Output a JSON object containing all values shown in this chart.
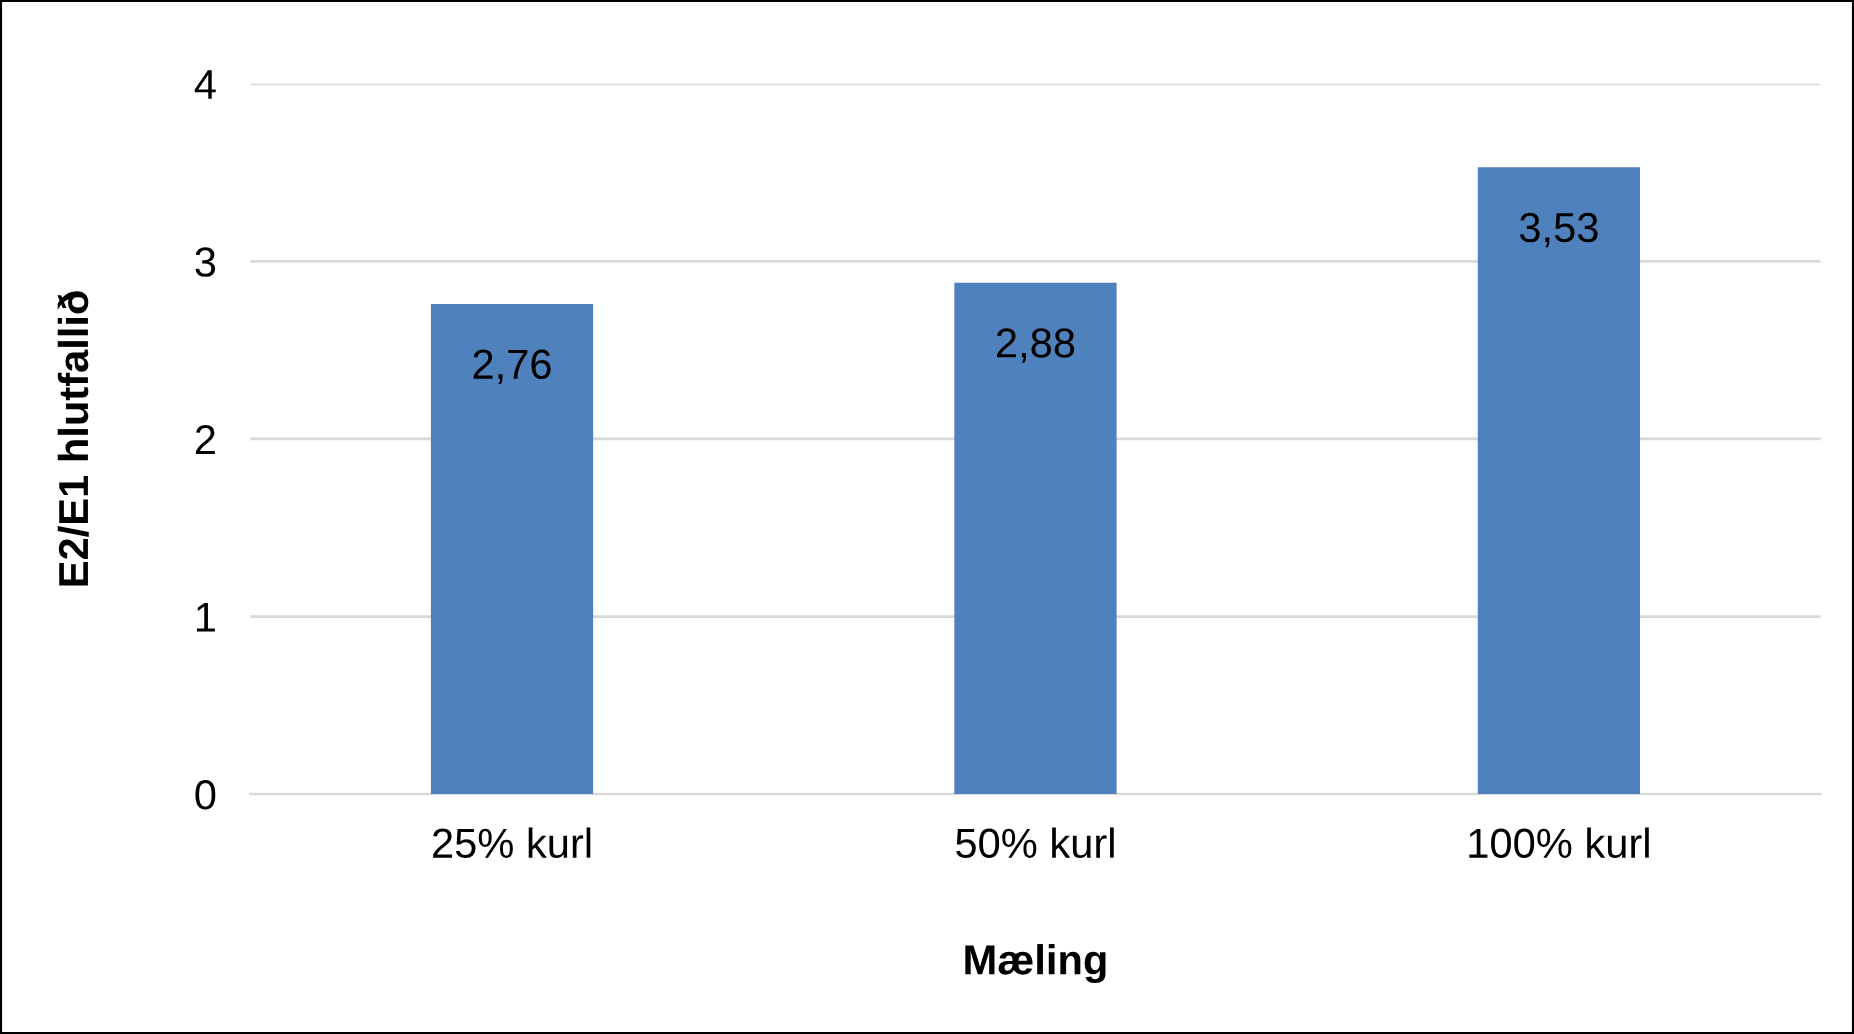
{
  "chart_data": {
    "type": "bar",
    "xlabel": "Mæling",
    "ylabel": "E2/E1 hlutfallið",
    "categories": [
      "25% kurl",
      "50% kurl",
      "100% kurl"
    ],
    "values": [
      2.76,
      2.88,
      3.53
    ],
    "value_labels": [
      "2,76",
      "2,88",
      "3,53"
    ],
    "color": "#4f81bd",
    "ylim": [
      0,
      4
    ],
    "yticks": [
      0,
      1,
      2,
      3,
      4
    ],
    "grid": "y",
    "legend": false
  }
}
